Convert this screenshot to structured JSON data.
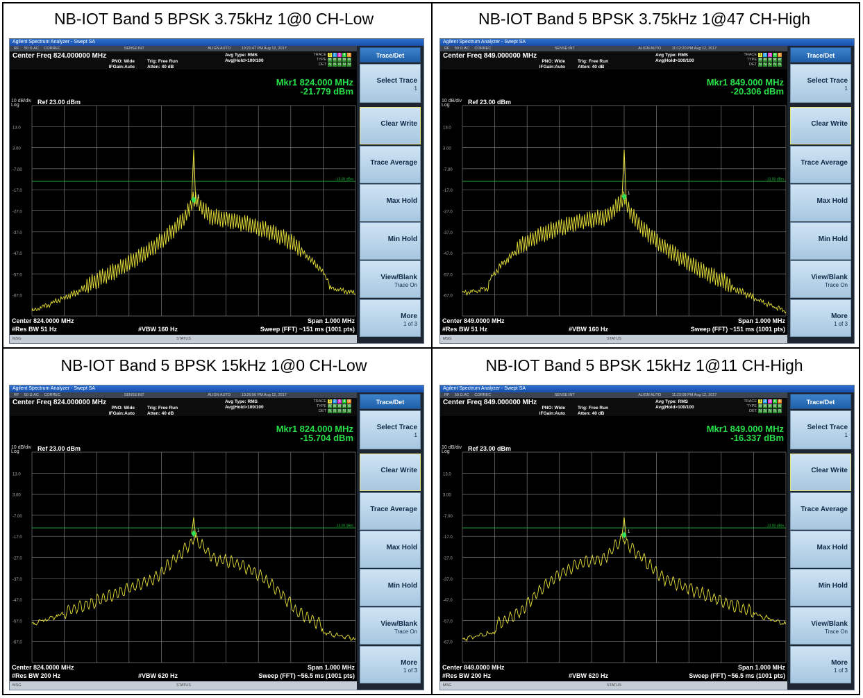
{
  "panels": [
    {
      "caption": "NB-IOT Band 5 BPSK 3.75kHz 1@0 CH-Low",
      "app_title": "Agilent Spectrum Analyzer - Swept SA",
      "status_row": [
        "RF",
        "50 Ω AC",
        "CORREC",
        "SENSE:INT",
        "ALIGN AUTO",
        "10:21:47 PM Aug 12, 2017"
      ],
      "center_freq_label": "Center Freq 824.000000 MHz",
      "pno": "PNO: Wide",
      "ifgain": "IFGain:Auto",
      "trig": "Trig: Free Run",
      "atten": "Atten: 40 dB",
      "avg_type": "Avg Type: RMS",
      "avg_hold": "Avg|Hold>100/100",
      "trace_labels": [
        "TRACE",
        "TYPE",
        "DET"
      ],
      "marker": "Mkr1 824.000 MHz",
      "marker_value": "-21.779 dBm",
      "scale": "10 dB/div",
      "log": "Log",
      "ref": "Ref 23.00 dBm",
      "ytick_labels": [
        "13.0",
        "3.00",
        "-7.00",
        "-17.0",
        "-27.0",
        "-37.0",
        "-47.0",
        "-57.0",
        "-67.0"
      ],
      "limit_label": "-13.00 dBm",
      "center_bottom": "Center 824.0000 MHz",
      "res_bw": "#Res BW 51 Hz",
      "vbw": "#VBW 160 Hz",
      "span": "Span 1.000 MHz",
      "sweep": "Sweep (FFT) ~151 ms (1001 pts)",
      "msg": "MSG",
      "status": "STATUS",
      "softkeys": {
        "header": "Trace/Det",
        "select_trace": "Select Trace",
        "select_trace_value": "1",
        "clear_write": "Clear Write",
        "trace_average": "Trace Average",
        "max_hold": "Max Hold",
        "min_hold": "Min Hold",
        "view_blank": "View/Blank",
        "view_blank_value": "Trace On",
        "more": "More",
        "more_value": "1 of 3"
      },
      "chart_data": {
        "type": "line",
        "xlabel": "",
        "ylabel": "",
        "x_range_mhz": [
          823.5,
          824.5
        ],
        "ylim": [
          -77,
          23
        ],
        "grid": true,
        "marker": {
          "x": 824.0,
          "y": -21.779
        },
        "limit_line": -13.0,
        "shape": "low_38"
      }
    },
    {
      "caption": "NB-IOT Band 5 BPSK 3.75kHz 1@47 CH-High",
      "app_title": "Agilent Spectrum Analyzer - Swept SA",
      "status_row": [
        "RF",
        "50 Ω AC",
        "CORREC",
        "SENSE:INT",
        "ALIGN AUTO",
        "11:12:20 PM Aug 12, 2017"
      ],
      "center_freq_label": "Center Freq 849.000000 MHz",
      "pno": "PNO: Wide",
      "ifgain": "IFGain:Auto",
      "trig": "Trig: Free Run",
      "atten": "Atten: 40 dB",
      "avg_type": "Avg Type: RMS",
      "avg_hold": "Avg|Hold>100/100",
      "trace_labels": [
        "TRACE",
        "TYPE",
        "DET"
      ],
      "marker": "Mkr1 849.000 MHz",
      "marker_value": "-20.306 dBm",
      "scale": "10 dB/div",
      "log": "Log",
      "ref": "Ref 23.00 dBm",
      "ytick_labels": [
        "13.0",
        "3.00",
        "-7.00",
        "-17.0",
        "-27.0",
        "-37.0",
        "-47.0",
        "-57.0",
        "-67.0"
      ],
      "limit_label": "-13.00 dBm",
      "center_bottom": "Center 849.0000 MHz",
      "res_bw": "#Res BW 51 Hz",
      "vbw": "#VBW 160 Hz",
      "span": "Span 1.000 MHz",
      "sweep": "Sweep (FFT) ~151 ms (1001 pts)",
      "msg": "MSG",
      "status": "STATUS",
      "softkeys": {
        "header": "Trace/Det",
        "select_trace": "Select Trace",
        "select_trace_value": "1",
        "clear_write": "Clear Write",
        "trace_average": "Trace Average",
        "max_hold": "Max Hold",
        "min_hold": "Min Hold",
        "view_blank": "View/Blank",
        "view_blank_value": "Trace On",
        "more": "More",
        "more_value": "1 of 3"
      },
      "chart_data": {
        "type": "line",
        "xlabel": "",
        "ylabel": "",
        "x_range_mhz": [
          848.5,
          849.5
        ],
        "ylim": [
          -77,
          23
        ],
        "grid": true,
        "marker": {
          "x": 849.0,
          "y": -20.306
        },
        "limit_line": -13.0,
        "shape": "high_38"
      }
    },
    {
      "caption": "NB-IOT Band 5 BPSK 15kHz 1@0 CH-Low",
      "app_title": "Agilent Spectrum Analyzer - Swept SA",
      "status_row": [
        "RF",
        "50 Ω AC",
        "CORREC",
        "SENSE:INT",
        "ALIGN AUTO",
        "10:26:56 PM Aug 12, 2017"
      ],
      "center_freq_label": "Center Freq 824.000000 MHz",
      "pno": "PNO: Wide",
      "ifgain": "IFGain:Auto",
      "trig": "Trig: Free Run",
      "atten": "Atten: 40 dB",
      "avg_type": "Avg Type: RMS",
      "avg_hold": "Avg|Hold>100/100",
      "trace_labels": [
        "TRACE",
        "TYPE",
        "DET"
      ],
      "marker": "Mkr1 824.000 MHz",
      "marker_value": "-15.704 dBm",
      "scale": "10 dB/div",
      "log": "Log",
      "ref": "Ref 23.00 dBm",
      "ytick_labels": [
        "13.0",
        "3.00",
        "-7.00",
        "-17.0",
        "-27.0",
        "-37.0",
        "-47.0",
        "-57.0",
        "-67.0"
      ],
      "limit_label": "-13.00 dBm",
      "center_bottom": "Center 824.0000 MHz",
      "res_bw": "#Res BW 200 Hz",
      "vbw": "#VBW 620 Hz",
      "span": "Span 1.000 MHz",
      "sweep": "Sweep (FFT) ~56.5 ms (1001 pts)",
      "msg": "MSG",
      "status": "STATUS",
      "softkeys": {
        "header": "Trace/Det",
        "select_trace": "Select Trace",
        "select_trace_value": "1",
        "clear_write": "Clear Write",
        "trace_average": "Trace Average",
        "max_hold": "Max Hold",
        "min_hold": "Min Hold",
        "view_blank": "View/Blank",
        "view_blank_value": "Trace On",
        "more": "More",
        "more_value": "1 of 3"
      },
      "chart_data": {
        "type": "line",
        "xlabel": "",
        "ylabel": "",
        "x_range_mhz": [
          823.5,
          824.5
        ],
        "ylim": [
          -77,
          23
        ],
        "grid": true,
        "marker": {
          "x": 824.0,
          "y": -15.704
        },
        "limit_line": -13.0,
        "shape": "low_15"
      }
    },
    {
      "caption": "NB-IOT Band 5 BPSK 15kHz 1@11 CH-High",
      "app_title": "Agilent Spectrum Analyzer - Swept SA",
      "status_row": [
        "RF",
        "50 Ω AC",
        "CORREC",
        "SENSE:INT",
        "ALIGN AUTO",
        "11:23:08 PM Aug 12, 2017"
      ],
      "center_freq_label": "Center Freq 849.000000 MHz",
      "pno": "PNO: Wide",
      "ifgain": "IFGain:Auto",
      "trig": "Trig: Free Run",
      "atten": "Atten: 40 dB",
      "avg_type": "Avg Type: RMS",
      "avg_hold": "Avg|Hold>100/100",
      "trace_labels": [
        "TRACE",
        "TYPE",
        "DET"
      ],
      "marker": "Mkr1 849.000 MHz",
      "marker_value": "-16.337 dBm",
      "scale": "10 dB/div",
      "log": "Log",
      "ref": "Ref 23.00 dBm",
      "ytick_labels": [
        "13.0",
        "3.00",
        "-7.00",
        "-17.0",
        "-27.0",
        "-37.0",
        "-47.0",
        "-57.0",
        "-67.0"
      ],
      "limit_label": "-13.00 dBm",
      "center_bottom": "Center 849.0000 MHz",
      "res_bw": "#Res BW 200 Hz",
      "vbw": "#VBW 620 Hz",
      "span": "Span 1.000 MHz",
      "sweep": "Sweep (FFT) ~56.5 ms (1001 pts)",
      "msg": "MSG",
      "status": "STATUS",
      "softkeys": {
        "header": "Trace/Det",
        "select_trace": "Select Trace",
        "select_trace_value": "1",
        "clear_write": "Clear Write",
        "trace_average": "Trace Average",
        "max_hold": "Max Hold",
        "min_hold": "Min Hold",
        "view_blank": "View/Blank",
        "view_blank_value": "Trace On",
        "more": "More",
        "more_value": "1 of 3"
      },
      "chart_data": {
        "type": "line",
        "xlabel": "",
        "ylabel": "",
        "x_range_mhz": [
          848.5,
          849.5
        ],
        "ylim": [
          -77,
          23
        ],
        "grid": true,
        "marker": {
          "x": 849.0,
          "y": -16.337
        },
        "limit_line": -13.0,
        "shape": "high_15"
      }
    }
  ],
  "colors": {
    "trace": "#e8e23a",
    "marker_text": "#27e04a",
    "marker_diamond": "#2fe05a",
    "limit": "#1fb83a",
    "grid": "#7a7a7a",
    "softkey": "#b8d6ee",
    "header_softkey": "#2d6fbf"
  }
}
